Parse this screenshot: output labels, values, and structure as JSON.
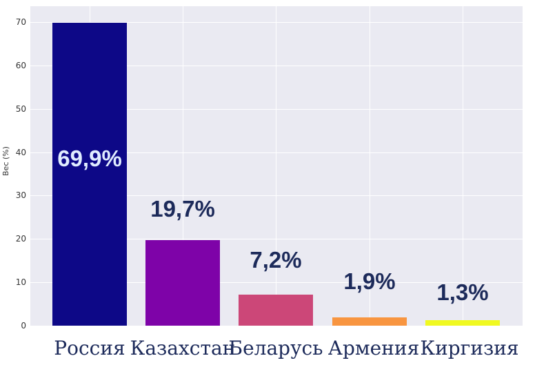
{
  "chart_data": {
    "type": "bar",
    "title": "",
    "xlabel": "",
    "ylabel": "Вес (%)",
    "ylim": [
      0,
      73
    ],
    "yticks": [
      0,
      10,
      20,
      30,
      40,
      50,
      60,
      70
    ],
    "grid": true,
    "categories": [
      "Россия",
      "Казахстан",
      "Беларусь",
      "Армения",
      "Киргизия"
    ],
    "values": [
      69.9,
      19.7,
      7.2,
      1.9,
      1.3
    ],
    "data_labels": [
      "69,9%",
      "19,7%",
      "7,2%",
      "1,9%",
      "1,3%"
    ],
    "colors": [
      "#0d0887",
      "#7e03a8",
      "#cc4778",
      "#f89540",
      "#f0f921"
    ],
    "label_color": "#1c2a5a",
    "inside_label_color": "#e0ecff"
  }
}
